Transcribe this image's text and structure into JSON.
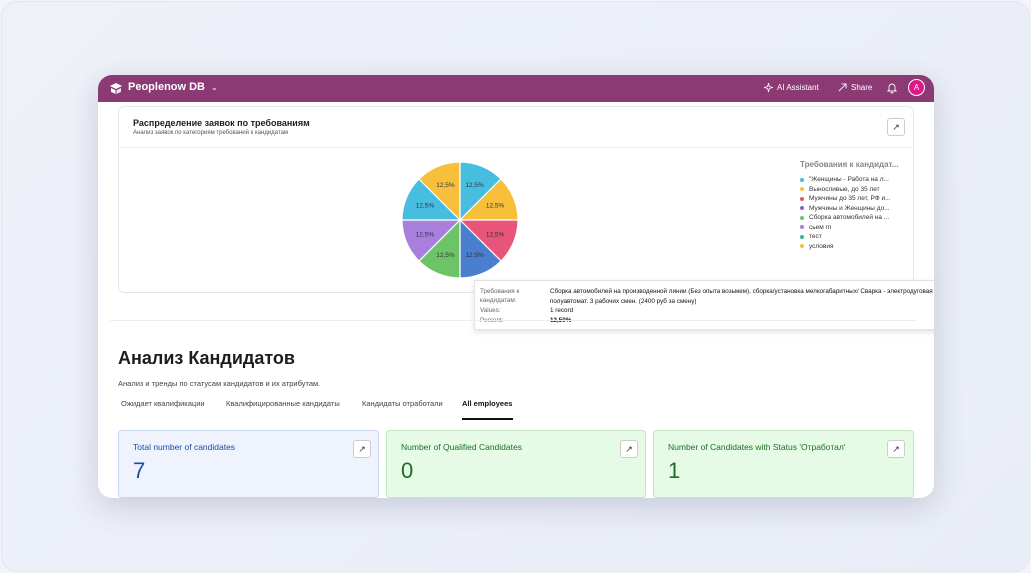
{
  "app": {
    "name": "Peoplenow DB",
    "ai_label": "AI Assistant",
    "share_label": "Share",
    "avatar_initial": "A",
    "bar_color": "#8c3a73"
  },
  "chart_card": {
    "title": "Распределение заявок по требованиям",
    "subtitle": "Анализ заявок по категориям требований к кандидатам",
    "legend_title": "Требования к кандидат...",
    "tooltip": {
      "label_key": "Требования к кандидатам:",
      "label_value": "Сборка автомобилей на производенной линии (Без опыта возьмем), сборка/установка мелкогабаритных/ Сварка - электродуговая полуавтомат. 3 рабочих смен. (2400 руб за смену)",
      "values_key": "Values:",
      "values_value": "1 record",
      "percent_key": "Percent:",
      "percent_value": "12,50%"
    }
  },
  "chart_data": {
    "type": "pie",
    "categories": [
      "\"Женщины - Работа на л...",
      "Выносливые, до 35 лет",
      "Мужчины до 35 лет, РФ и...",
      "Мужчины и Женщины до...",
      "Сборка автомобилей на ...",
      "сьем гп",
      "тест",
      "условия"
    ],
    "values": [
      12.5,
      12.5,
      12.5,
      12.5,
      12.5,
      12.5,
      12.5,
      12.5
    ],
    "data_labels": [
      "12,5%",
      "12,5%",
      "12,5%",
      "12,5%",
      "12,5%",
      "12,5%",
      "12,5%",
      "12,5%"
    ],
    "slice_colors": [
      "#47bde0",
      "#f7bf3a",
      "#e8547a",
      "#4a7fd0",
      "#6cc466",
      "#a87fdc",
      "#47bde0",
      "#f7bf3a"
    ],
    "legend_colors": [
      "#47bde0",
      "#f7bf3a",
      "#e8547a",
      "#8a5ec7",
      "#6cc466",
      "#a87fdc",
      "#2fb5a0",
      "#f7bf3a"
    ],
    "legend_placement": "right"
  },
  "analysis": {
    "title": "Анализ Кандидатов",
    "description": "Анализ и тренды по статусам кандидатов и их атрибутам.",
    "tabs": [
      "Ожидает квалификации",
      "Квалифицированные кандидаты",
      "Кандидаты отработали",
      "All employees"
    ],
    "active_tab": "All employees"
  },
  "stats": [
    {
      "label": "Total number of candidates",
      "value": "7",
      "color": "#1a4da6"
    },
    {
      "label": "Number of Qualified Candidates",
      "value": "0",
      "color": "#1f6d23"
    },
    {
      "label": "Number of Candidates with Status 'Отработал'",
      "value": "1",
      "color": "#1f6d23"
    }
  ]
}
